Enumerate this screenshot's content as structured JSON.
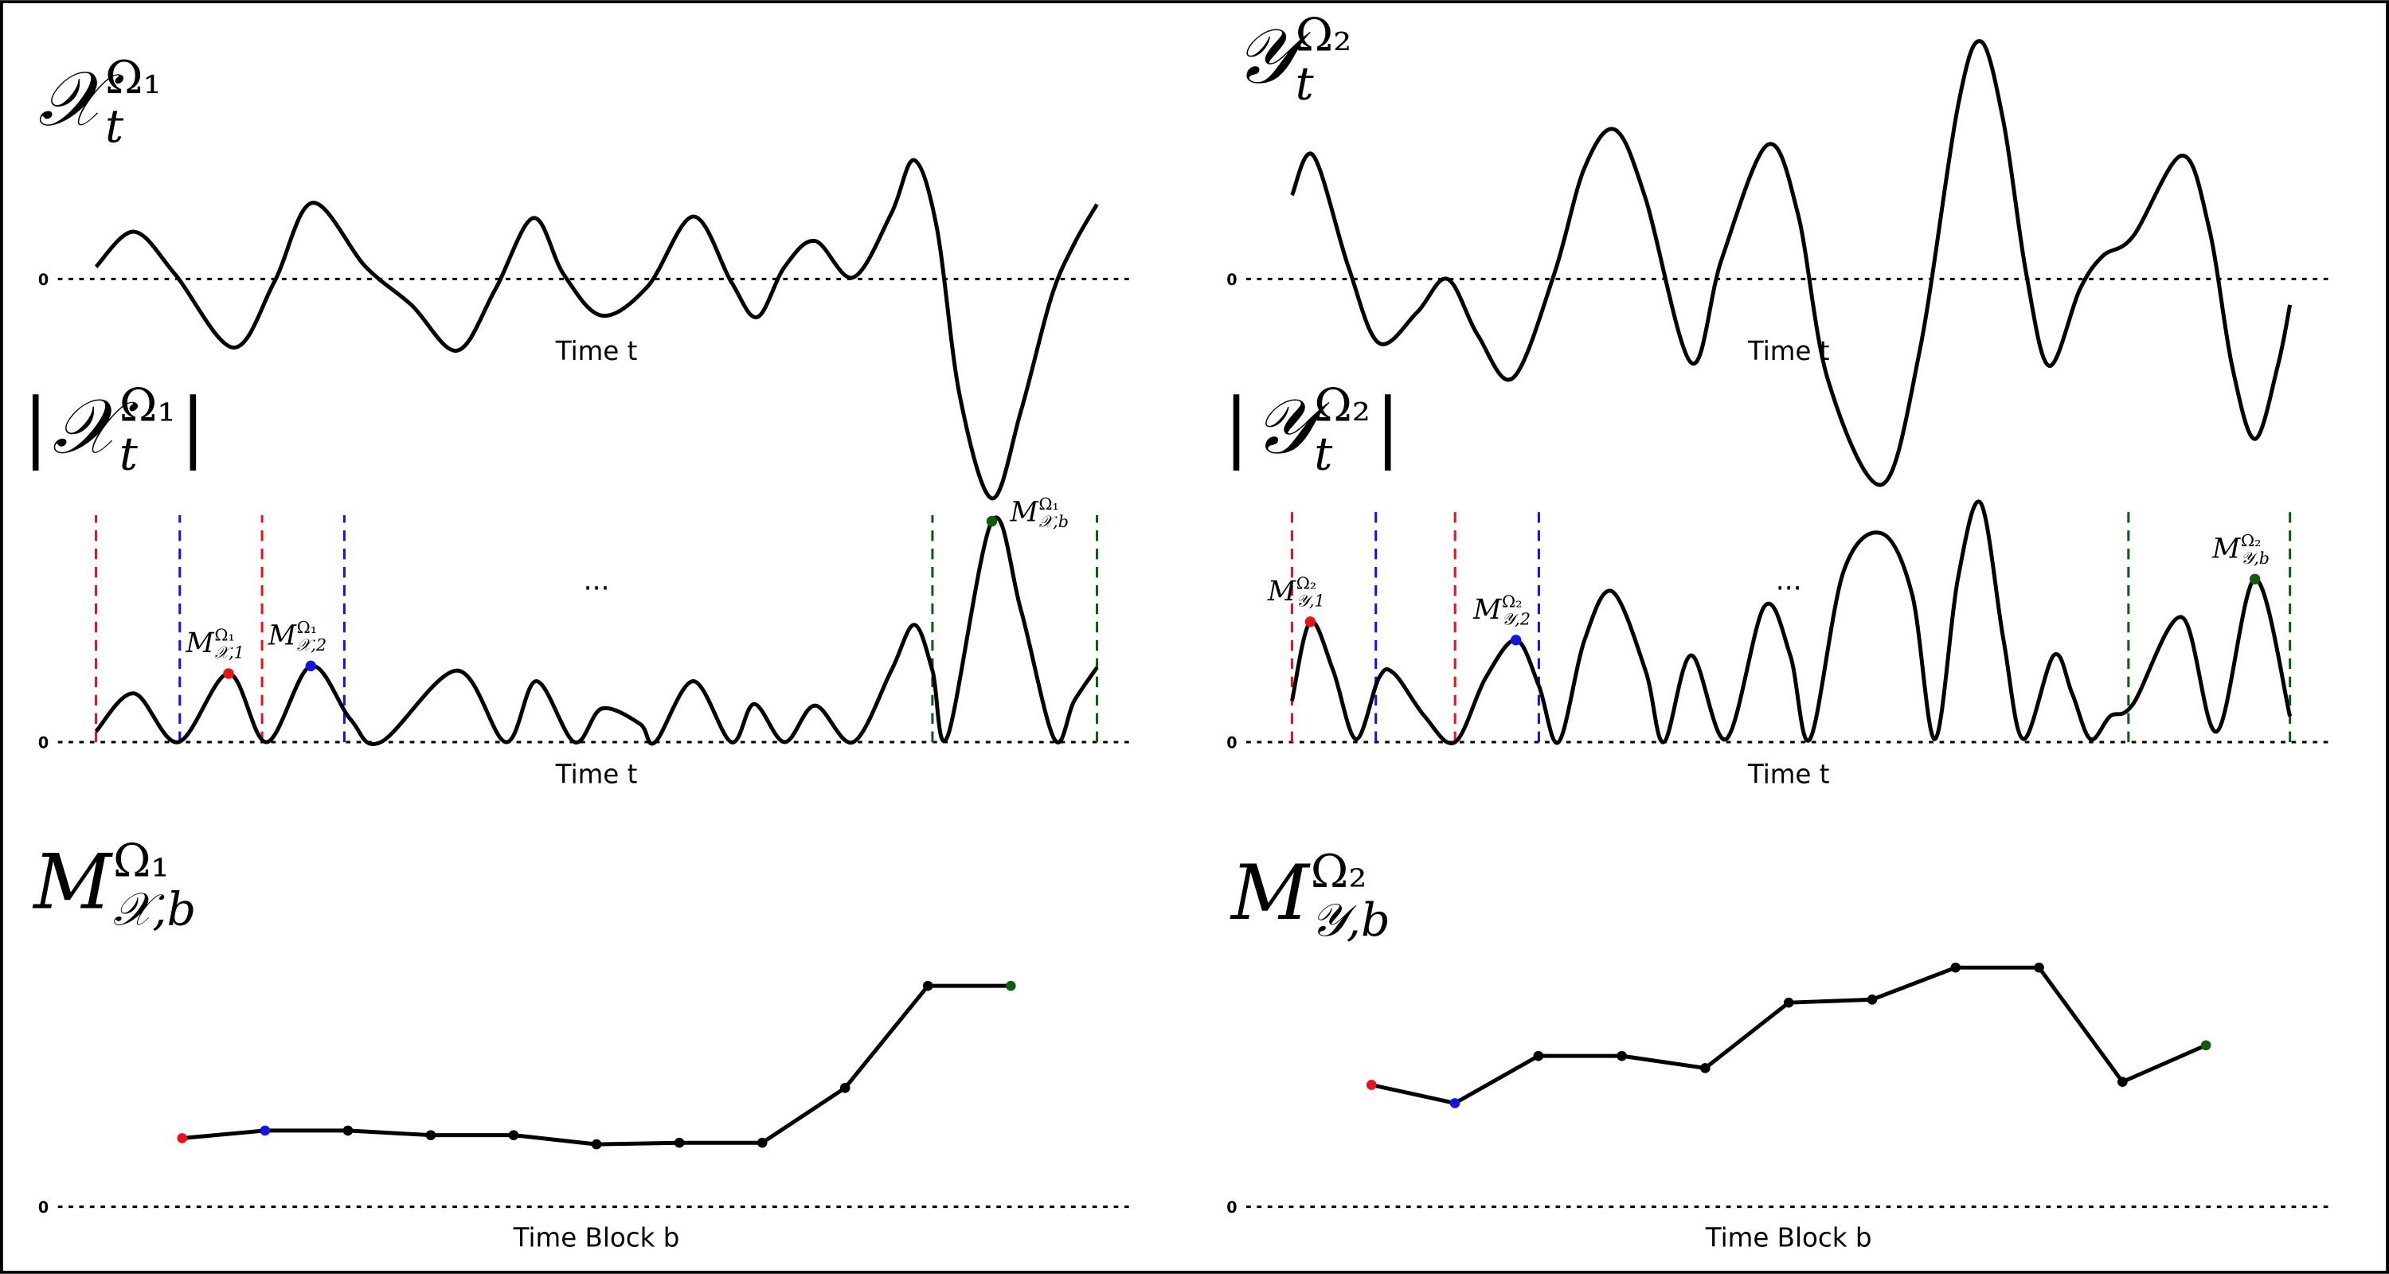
{
  "chart_data": [
    {
      "type": "line",
      "smooth": true,
      "color": "#000000",
      "title": {
        "base": "𝒳",
        "sub": "t",
        "sup": "Ω₁"
      },
      "xlabel": "Time t",
      "xlim": [
        0,
        707
      ],
      "ylim": [
        -150,
        160
      ],
      "yticks": [
        0
      ],
      "x": [
        25,
        50,
        77,
        115,
        142,
        167,
        202,
        232,
        262,
        287,
        312,
        332,
        357,
        387,
        417,
        442,
        459,
        477,
        497,
        522,
        547,
        562,
        577,
        592,
        613,
        632,
        652,
        667,
        682
      ],
      "values": [
        8,
        31,
        3,
        -45,
        -2,
        50,
        8,
        -17,
        -47,
        -7,
        40,
        3,
        -24,
        -5,
        41,
        -2,
        -25,
        8,
        25,
        1,
        43,
        78,
        33,
        -77,
        -144,
        -87,
        -12,
        23,
        49
      ]
    },
    {
      "type": "line",
      "smooth": true,
      "color": "#000000",
      "title": {
        "pre": "|",
        "base": "𝒳",
        "sub": "t",
        "sup": "Ω₁",
        "post": "|"
      },
      "xlabel": "Time t",
      "annotation": "...",
      "xlim": [
        0,
        707
      ],
      "ylim": [
        0,
        160
      ],
      "yticks": [
        0
      ],
      "x": [
        25,
        50,
        79,
        112,
        137,
        166,
        192,
        212,
        262,
        294,
        314,
        339,
        357,
        382,
        392,
        417,
        442,
        457,
        477,
        497,
        522,
        547,
        562,
        574,
        584,
        613,
        632,
        654,
        667,
        682
      ],
      "values": [
        7,
        32,
        0,
        45,
        0,
        50,
        15,
        0,
        47,
        0,
        40,
        0,
        22,
        12,
        0,
        40,
        0,
        25,
        0,
        24,
        0,
        47,
        77,
        47,
        4,
        145,
        87,
        2,
        27,
        49
      ],
      "blocks": [
        {
          "start": 25,
          "end": 134,
          "color": "#e8141c"
        },
        {
          "start": 80,
          "end": 188,
          "color": "#1414e6"
        },
        {
          "start": 574,
          "end": 682,
          "color": "#0f5c0f"
        }
      ],
      "highlights": [
        {
          "index": 3,
          "color": "#e8141c",
          "label": {
            "base": "M",
            "sub": "𝒳,1",
            "sup": "Ω₁"
          }
        },
        {
          "index": 5,
          "color": "#1414e6",
          "label": {
            "base": "M",
            "sub": "𝒳,2",
            "sup": "Ω₁"
          }
        },
        {
          "index": 25,
          "color": "#0f5c0f",
          "label": {
            "base": "M",
            "sub": "𝒳,b",
            "sup": "Ω₁"
          }
        }
      ]
    },
    {
      "type": "line",
      "smooth": false,
      "markers": true,
      "color": "#000000",
      "title": {
        "base": "M",
        "sub": "𝒳,b",
        "sup": "Ω₁"
      },
      "xlabel": "Time Block b",
      "xlim": [
        -0.5,
        12.5
      ],
      "ylim": [
        0,
        160
      ],
      "yticks": [
        0
      ],
      "x": [
        1,
        2,
        3,
        4,
        5,
        6,
        7,
        8,
        9,
        10,
        11
      ],
      "values": [
        45,
        50,
        50,
        47,
        47,
        41,
        42,
        42,
        78,
        145,
        145
      ],
      "highlights": [
        {
          "index": 0,
          "color": "#e8141c"
        },
        {
          "index": 1,
          "color": "#1414e6"
        },
        {
          "index": 10,
          "color": "#0f5c0f"
        }
      ]
    },
    {
      "type": "line",
      "smooth": true,
      "color": "#000000",
      "title": {
        "base": "𝒴",
        "sub": "t",
        "sup": "Ω₂"
      },
      "xlabel": "Time t",
      "xlim": [
        0,
        712
      ],
      "ylim": [
        -150,
        160
      ],
      "yticks": [
        0
      ],
      "x": [
        30,
        44,
        67,
        87,
        112,
        132,
        152,
        175,
        202,
        222,
        242,
        262,
        292,
        312,
        342,
        362,
        382,
        417,
        442,
        467,
        482,
        497,
        512,
        527,
        547,
        562,
        582,
        614,
        632,
        647,
        662,
        677,
        685
      ],
      "values": [
        55,
        81,
        8,
        -42,
        -22,
        0,
        -37,
        -65,
        3,
        73,
        98,
        53,
        -55,
        13,
        88,
        43,
        -67,
        -135,
        -47,
        113,
        156,
        103,
        3,
        -57,
        -7,
        15,
        28,
        81,
        33,
        -57,
        -105,
        -57,
        -17
      ]
    },
    {
      "type": "line",
      "smooth": true,
      "color": "#000000",
      "title": {
        "pre": "|",
        "base": "𝒴",
        "sub": "t",
        "sup": "Ω₂",
        "post": "|"
      },
      "xlabel": "Time t",
      "annotation": "...",
      "xlim": [
        0,
        712
      ],
      "ylim": [
        0,
        165
      ],
      "yticks": [
        0
      ],
      "x": [
        30,
        42,
        57,
        72,
        87,
        97,
        117,
        137,
        157,
        177,
        192,
        205,
        222,
        240,
        262,
        274,
        292,
        315,
        340,
        357,
        370,
        392,
        417,
        437,
        452,
        467,
        482,
        497,
        510,
        530,
        542,
        554,
        567,
        582,
        614,
        637,
        662,
        685
      ],
      "values": [
        27,
        79,
        47,
        2,
        42,
        45,
        17,
        0,
        42,
        67,
        37,
        0,
        67,
        99,
        47,
        0,
        57,
        2,
        89,
        57,
        2,
        112,
        137,
        97,
        2,
        107,
        157,
        67,
        2,
        57,
        32,
        2,
        17,
        25,
        82,
        7,
        107,
        17
      ],
      "blocks": [
        {
          "start": 30,
          "end": 137,
          "color": "#e8141c"
        },
        {
          "start": 85,
          "end": 192,
          "color": "#1414e6"
        },
        {
          "start": 579,
          "end": 685,
          "color": "#0f5c0f"
        }
      ],
      "highlights": [
        {
          "index": 1,
          "color": "#e8141c",
          "label": {
            "base": "M",
            "sub": "𝒴,1",
            "sup": "Ω₂"
          }
        },
        {
          "index": 9,
          "color": "#1414e6",
          "label": {
            "base": "M",
            "sub": "𝒴,2",
            "sup": "Ω₂"
          }
        },
        {
          "index": 36,
          "color": "#0f5c0f",
          "label": {
            "base": "M",
            "sub": "𝒴,b",
            "sup": "Ω₂"
          }
        }
      ]
    },
    {
      "type": "line",
      "smooth": false,
      "markers": true,
      "color": "#000000",
      "title": {
        "base": "M",
        "sub": "𝒴,b",
        "sup": "Ω₂"
      },
      "xlabel": "Time Block b",
      "xlim": [
        -0.5,
        12.5
      ],
      "ylim": [
        0,
        170
      ],
      "yticks": [
        0
      ],
      "x": [
        1,
        2,
        3,
        4,
        5,
        6,
        7,
        8,
        9,
        10,
        11
      ],
      "values": [
        80,
        68,
        99,
        99,
        91,
        134,
        136,
        157,
        157,
        82,
        106
      ],
      "highlights": [
        {
          "index": 0,
          "color": "#e8141c"
        },
        {
          "index": 1,
          "color": "#1414e6"
        },
        {
          "index": 10,
          "color": "#0f5c0f"
        }
      ]
    }
  ]
}
